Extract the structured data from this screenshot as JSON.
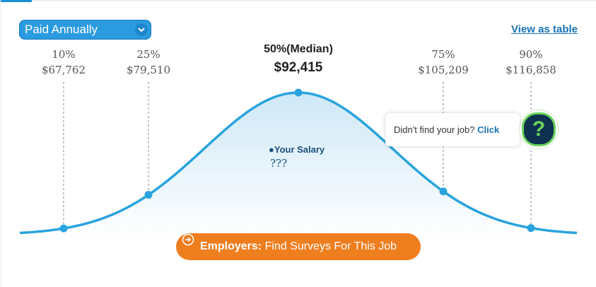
{
  "dropdown": {
    "label": "Paid Annually"
  },
  "link": "View as table",
  "percentiles": [
    {
      "label": "10%",
      "value": "$67,762"
    },
    {
      "label": "25%",
      "value": "$79,510"
    },
    {
      "label": "50%(Median)",
      "value": "$92,415"
    },
    {
      "label": "75%",
      "value": "$105,209"
    },
    {
      "label": "90%",
      "value": "$116,858"
    }
  ],
  "your_salary": {
    "label": "Your Salary",
    "value": "???"
  },
  "help": {
    "text": "Didn't find your job?",
    "link": "Click",
    "icon": "?"
  },
  "button": {
    "bold": "Employers:",
    "text": "Find Surveys For This Job"
  }
}
